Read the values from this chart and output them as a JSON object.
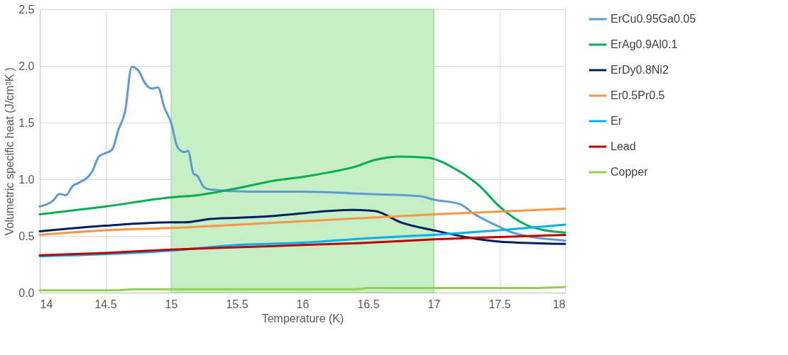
{
  "chart_data": {
    "type": "line",
    "xlabel": "Temperature (K)",
    "ylabel": "Volumetric specific heat (J/cm³K )",
    "xlim": [
      14,
      18
    ],
    "xticks": [
      14,
      14.5,
      15,
      15.5,
      16,
      16.5,
      17,
      17.5,
      18
    ],
    "ylim": [
      0,
      2.5
    ],
    "yticks": [
      {
        "value": 0,
        "label": "0.0"
      },
      0.5,
      {
        "value": 1,
        "label": "1.0"
      },
      1.5,
      {
        "value": 2,
        "label": "2.0"
      },
      2.5
    ],
    "grid": true,
    "legend": "right",
    "marker": "none",
    "line_style": "solid",
    "bands": [
      {
        "axis": "x",
        "from": 15,
        "to": 17,
        "color": "#c6efc6"
      }
    ],
    "series": [
      {
        "name": "ErCu0.95Ga0.05",
        "color": "#5b9bd5",
        "x": [
          14.0,
          14.1,
          14.15,
          14.2,
          14.25,
          14.3,
          14.4,
          14.45,
          14.5,
          14.55,
          14.6,
          14.65,
          14.7,
          14.75,
          14.8,
          14.85,
          14.9,
          14.95,
          15.0,
          15.05,
          15.1,
          15.13,
          15.17,
          15.2,
          15.25,
          15.3,
          15.6,
          16.0,
          16.5,
          16.9,
          17.0,
          17.2,
          17.3,
          17.5,
          17.6,
          18.0
        ],
        "values": [
          0.76,
          0.81,
          0.87,
          0.86,
          0.94,
          0.97,
          1.07,
          1.2,
          1.23,
          1.26,
          1.44,
          1.6,
          1.99,
          1.96,
          1.85,
          1.8,
          1.81,
          1.63,
          1.5,
          1.28,
          1.24,
          1.25,
          1.05,
          1.03,
          0.93,
          0.91,
          0.89,
          0.89,
          0.87,
          0.85,
          0.82,
          0.78,
          0.7,
          0.58,
          0.53,
          0.46
        ]
      },
      {
        "name": "ErAg0.9Al0.1",
        "color": "#00b050",
        "x": [
          14.0,
          14.5,
          15.0,
          15.2,
          15.5,
          15.8,
          16.0,
          16.2,
          16.4,
          16.55,
          16.75,
          16.95,
          17.15,
          17.35,
          17.5,
          17.7,
          17.9,
          18.0
        ],
        "values": [
          0.69,
          0.76,
          0.84,
          0.86,
          0.92,
          0.99,
          1.02,
          1.06,
          1.11,
          1.17,
          1.2,
          1.19,
          1.1,
          0.94,
          0.76,
          0.6,
          0.54,
          0.53
        ]
      },
      {
        "name": "ErDy0.8Ni2",
        "color": "#002060",
        "x": [
          14.0,
          14.5,
          15.0,
          15.1,
          15.3,
          15.7,
          16.0,
          16.2,
          16.38,
          16.55,
          16.75,
          17.0,
          17.5,
          18.0
        ],
        "values": [
          0.54,
          0.59,
          0.62,
          0.62,
          0.65,
          0.67,
          0.7,
          0.72,
          0.73,
          0.72,
          0.62,
          0.55,
          0.45,
          0.43
        ]
      },
      {
        "name": "Er0.5Pr0.5",
        "color": "#f79646",
        "x": [
          14.0,
          14.5,
          15.0,
          16.0,
          17.0,
          18.0
        ],
        "values": [
          0.51,
          0.55,
          0.57,
          0.63,
          0.69,
          0.74
        ]
      },
      {
        "name": "Er",
        "color": "#00b0f0",
        "x": [
          14.0,
          15.0,
          15.5,
          16.0,
          16.5,
          17.0,
          17.5,
          18.0
        ],
        "values": [
          0.32,
          0.37,
          0.42,
          0.44,
          0.48,
          0.51,
          0.55,
          0.6
        ]
      },
      {
        "name": "Lead",
        "color": "#c00000",
        "x": [
          14.0,
          14.5,
          15.0,
          15.5,
          16.0,
          16.5,
          17.0,
          17.5,
          18.0
        ],
        "values": [
          0.33,
          0.35,
          0.38,
          0.4,
          0.42,
          0.44,
          0.47,
          0.49,
          0.51
        ]
      },
      {
        "name": "Copper",
        "color": "#92d050",
        "x": [
          14.0,
          14.6,
          14.7,
          16.4,
          16.5,
          17.7,
          18.0
        ],
        "values": [
          0.02,
          0.02,
          0.03,
          0.03,
          0.04,
          0.04,
          0.05
        ]
      }
    ]
  }
}
